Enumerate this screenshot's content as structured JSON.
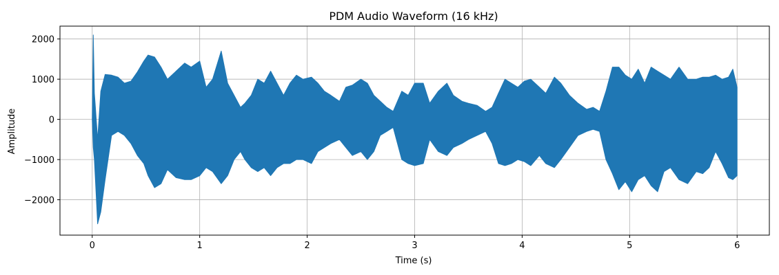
{
  "chart_data": {
    "type": "line",
    "title": "PDM Audio Waveform (16 kHz)",
    "xlabel": "Time (s)",
    "ylabel": "Amplitude",
    "xlim": [
      -0.3,
      6.3
    ],
    "ylim": [
      -2880,
      2320
    ],
    "x_ticks": [
      0,
      1,
      2,
      3,
      4,
      5,
      6
    ],
    "x_tick_labels": [
      "0",
      "1",
      "2",
      "3",
      "4",
      "5",
      "6"
    ],
    "y_ticks": [
      -2000,
      -1000,
      0,
      1000,
      2000
    ],
    "y_tick_labels": [
      "−2000",
      "−1000",
      "0",
      "1000",
      "2000"
    ],
    "grid": true,
    "series": [
      {
        "color": "#1f77b4",
        "x": [
          0.0,
          0.01,
          0.02,
          0.03,
          0.05,
          0.08,
          0.12,
          0.18,
          0.24,
          0.3,
          0.36,
          0.42,
          0.48,
          0.52,
          0.58,
          0.64,
          0.7,
          0.78,
          0.86,
          0.92,
          1.0,
          1.06,
          1.12,
          1.2,
          1.26,
          1.32,
          1.38,
          1.42,
          1.48,
          1.54,
          1.6,
          1.66,
          1.72,
          1.78,
          1.84,
          1.9,
          1.96,
          2.04,
          2.1,
          2.16,
          2.22,
          2.3,
          2.36,
          2.42,
          2.5,
          2.56,
          2.62,
          2.68,
          2.74,
          2.8,
          2.88,
          2.94,
          3.0,
          3.08,
          3.14,
          3.22,
          3.3,
          3.36,
          3.44,
          3.5,
          3.58,
          3.66,
          3.72,
          3.78,
          3.84,
          3.9,
          3.96,
          4.02,
          4.08,
          4.16,
          4.22,
          4.3,
          4.36,
          4.44,
          4.52,
          4.6,
          4.66,
          4.72,
          4.78,
          4.84,
          4.9,
          4.96,
          5.02,
          5.08,
          5.14,
          5.2,
          5.26,
          5.32,
          5.38,
          5.46,
          5.54,
          5.62,
          5.68,
          5.74,
          5.8,
          5.86,
          5.92,
          5.96,
          6.0
        ],
        "upper": [
          0,
          2100,
          650,
          300,
          -500,
          700,
          1120,
          1100,
          1050,
          900,
          950,
          1180,
          1450,
          1600,
          1550,
          1300,
          1000,
          1200,
          1400,
          1300,
          1450,
          800,
          1000,
          1700,
          900,
          600,
          300,
          400,
          600,
          1000,
          900,
          1200,
          900,
          600,
          900,
          1100,
          1000,
          1050,
          900,
          700,
          600,
          450,
          800,
          850,
          1000,
          900,
          600,
          450,
          300,
          200,
          700,
          600,
          900,
          900,
          400,
          700,
          900,
          600,
          450,
          400,
          350,
          200,
          300,
          650,
          1000,
          900,
          800,
          950,
          1000,
          800,
          650,
          1050,
          900,
          600,
          400,
          250,
          300,
          200,
          700,
          1300,
          1300,
          1100,
          1000,
          1250,
          900,
          1300,
          1200,
          1100,
          1000,
          1300,
          1000,
          1000,
          1050,
          1050,
          1100,
          1000,
          1050,
          1250,
          800
        ],
        "lower": [
          0,
          -700,
          -1000,
          -1500,
          -2600,
          -2300,
          -1500,
          -400,
          -300,
          -400,
          -600,
          -900,
          -1100,
          -1400,
          -1700,
          -1600,
          -1250,
          -1450,
          -1500,
          -1500,
          -1400,
          -1200,
          -1300,
          -1600,
          -1400,
          -1000,
          -800,
          -1000,
          -1200,
          -1300,
          -1200,
          -1400,
          -1200,
          -1100,
          -1100,
          -1000,
          -1000,
          -1100,
          -800,
          -700,
          -600,
          -500,
          -700,
          -900,
          -800,
          -1000,
          -800,
          -400,
          -300,
          -200,
          -1000,
          -1100,
          -1150,
          -1100,
          -500,
          -800,
          -900,
          -700,
          -600,
          -500,
          -400,
          -300,
          -600,
          -1100,
          -1150,
          -1100,
          -1000,
          -1050,
          -1150,
          -900,
          -1100,
          -1200,
          -1000,
          -700,
          -400,
          -300,
          -250,
          -300,
          -1000,
          -1350,
          -1750,
          -1550,
          -1800,
          -1500,
          -1400,
          -1650,
          -1800,
          -1300,
          -1200,
          -1500,
          -1600,
          -1300,
          -1350,
          -1200,
          -800,
          -1100,
          -1450,
          -1500,
          -1400
        ]
      }
    ]
  }
}
